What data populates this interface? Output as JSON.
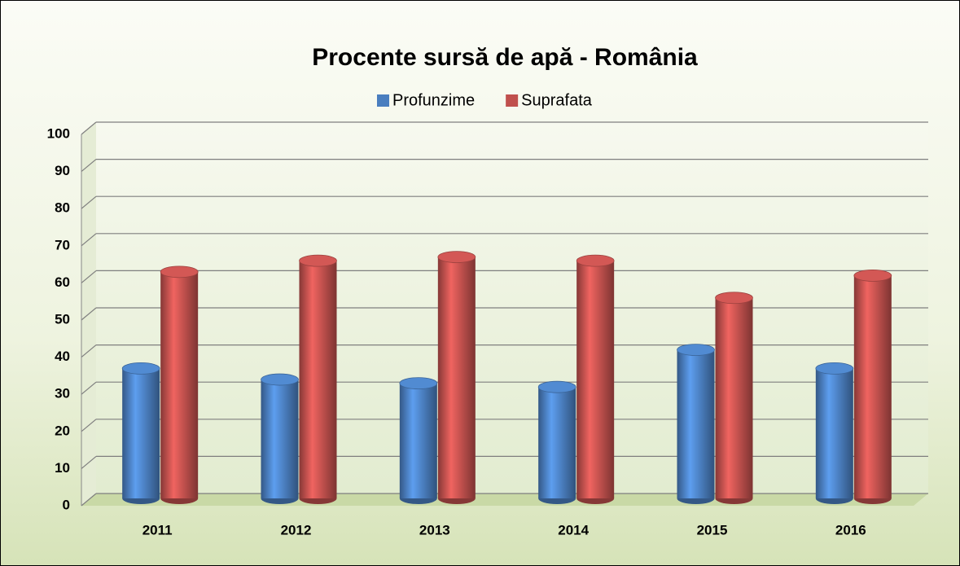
{
  "chart_data": {
    "type": "bar",
    "title": "Procente sursă de apă - România",
    "categories": [
      "2011",
      "2012",
      "2013",
      "2014",
      "2015",
      "2016"
    ],
    "series": [
      {
        "name": "Profunzime",
        "color": "#4a7ebf",
        "values": [
          35,
          32,
          31,
          30,
          40,
          35
        ]
      },
      {
        "name": "Suprafata",
        "color": "#c0504d",
        "values": [
          61,
          64,
          65,
          64,
          54,
          60
        ]
      }
    ],
    "ylim": [
      0,
      100
    ],
    "yticks": [
      0,
      10,
      20,
      30,
      40,
      50,
      60,
      70,
      80,
      90,
      100
    ],
    "grid": true,
    "legend": "top"
  }
}
